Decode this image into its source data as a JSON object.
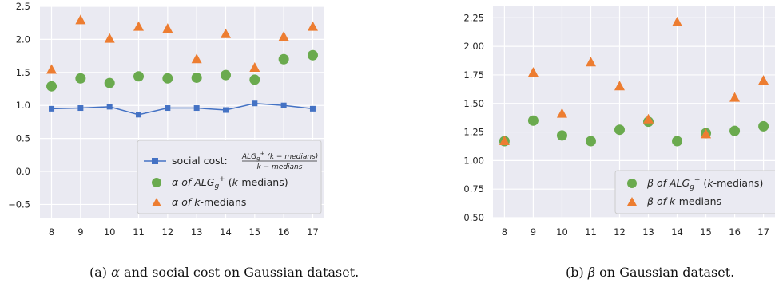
{
  "colors": {
    "panel_bg": "#eaeaf2",
    "grid": "#ffffff",
    "blue": "#4472c4",
    "green": "#6aaa4e",
    "orange": "#ed7d31"
  },
  "chart_data": [
    {
      "type": "scatter",
      "x": [
        8,
        9,
        10,
        11,
        12,
        13,
        14,
        15,
        16,
        17
      ],
      "ylim": [
        -0.7,
        2.5
      ],
      "yticks": [
        "2.5",
        "2.0",
        "1.5",
        "1.0",
        "0.5",
        "0.0",
        "−0.5"
      ],
      "xticks": [
        "8",
        "9",
        "10",
        "11",
        "12",
        "13",
        "14",
        "15",
        "16",
        "17"
      ],
      "legend_position": "lower-right",
      "series": [
        {
          "name": "social cost:",
          "fraction_num": "ALG",
          "fraction_num_sub": "g",
          "fraction_num_sup": "+",
          "fraction_num_rest": " (k − medians)",
          "fraction_den": "k − medians",
          "marker": "square-line",
          "color": "#4472c4",
          "values": [
            0.95,
            0.96,
            0.98,
            0.86,
            0.96,
            0.96,
            0.93,
            1.03,
            1.0,
            0.95
          ]
        },
        {
          "name_pre": "α of ",
          "name_alg": "ALG",
          "name_sub": "g",
          "name_sup": "+",
          "name_post": " (",
          "name_k": "k",
          "name_end": "-medians)",
          "marker": "circle",
          "color": "#6aaa4e",
          "values": [
            1.29,
            1.41,
            1.34,
            1.44,
            1.41,
            1.42,
            1.46,
            1.39,
            1.7,
            1.76
          ]
        },
        {
          "name_pre": "α of ",
          "name_k": "k",
          "name_end": "-medians",
          "marker": "triangle",
          "color": "#ed7d31",
          "values": [
            1.54,
            2.29,
            2.01,
            2.19,
            2.16,
            1.7,
            2.08,
            1.57,
            2.04,
            2.19
          ]
        }
      ]
    },
    {
      "type": "scatter",
      "x": [
        8,
        9,
        10,
        11,
        12,
        13,
        14,
        15,
        16,
        17
      ],
      "ylim": [
        0.5,
        2.35
      ],
      "yticks": [
        "2.25",
        "2.00",
        "1.75",
        "1.50",
        "1.25",
        "1.00",
        "0.75",
        "0.50"
      ],
      "xticks": [
        "8",
        "9",
        "10",
        "11",
        "12",
        "13",
        "14",
        "15",
        "16",
        "17"
      ],
      "legend_position": "lower-right",
      "series": [
        {
          "name_pre": "β of ",
          "name_alg": "ALG",
          "name_sub": "g",
          "name_sup": "+",
          "name_post": " (",
          "name_k": "k",
          "name_end": "-medians)",
          "marker": "circle",
          "color": "#6aaa4e",
          "values": [
            1.17,
            1.35,
            1.22,
            1.17,
            1.27,
            1.34,
            1.17,
            1.24,
            1.26,
            1.3
          ]
        },
        {
          "name_pre": "β of ",
          "name_k": "k",
          "name_end": "-medians",
          "marker": "triangle",
          "color": "#ed7d31",
          "values": [
            1.17,
            1.77,
            1.41,
            1.86,
            1.65,
            1.36,
            2.21,
            1.23,
            1.55,
            1.7
          ]
        }
      ]
    }
  ],
  "captions": [
    {
      "label": "(a)",
      "symbol": "α",
      "text": " and social cost on Gaussian dataset."
    },
    {
      "label": "(b)",
      "symbol": "β",
      "text": " on Gaussian dataset."
    }
  ]
}
